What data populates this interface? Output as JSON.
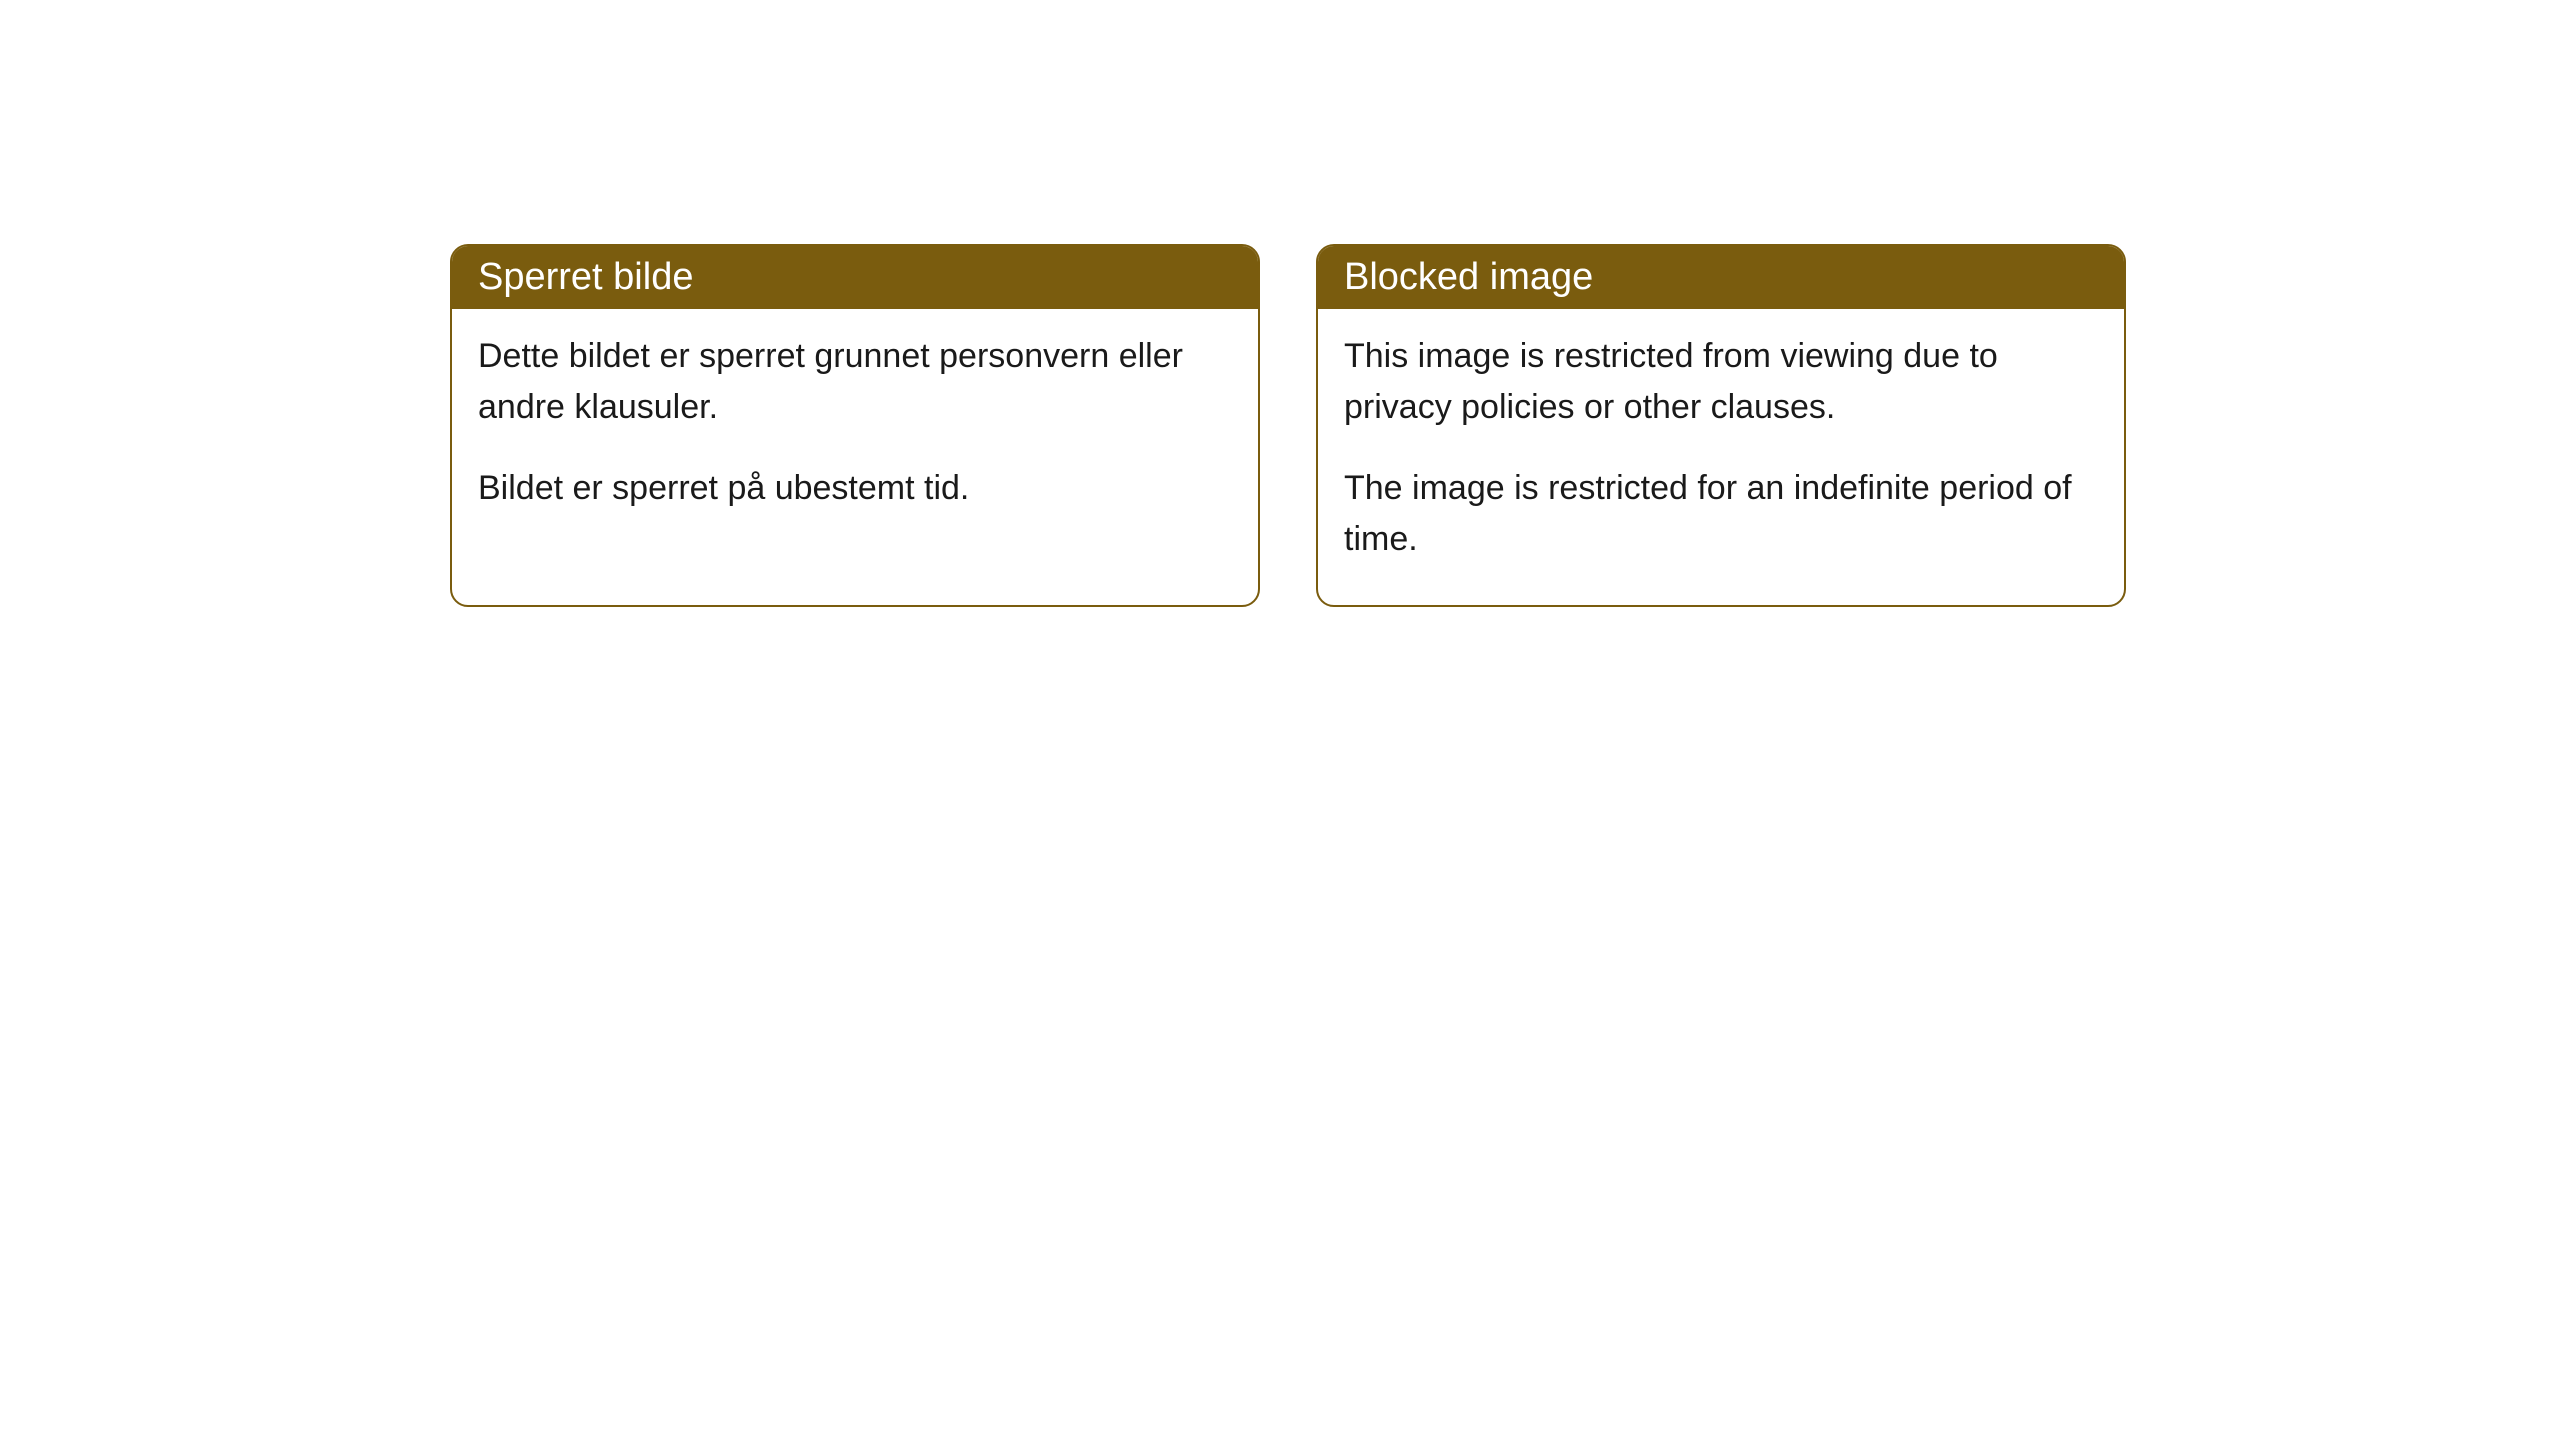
{
  "cards": [
    {
      "title": "Sperret bilde",
      "paragraph1": "Dette bildet er sperret grunnet personvern eller andre klausuler.",
      "paragraph2": "Bildet er sperret på ubestemt tid."
    },
    {
      "title": "Blocked image",
      "paragraph1": "This image is restricted from viewing due to privacy policies or other clauses.",
      "paragraph2": "The image is restricted for an indefinite period of time."
    }
  ],
  "style": {
    "header_bg_color": "#7a5c0e",
    "header_text_color": "#ffffff",
    "border_color": "#7a5c0e",
    "body_text_color": "#1a1a1a",
    "background_color": "#ffffff",
    "border_radius": 18,
    "header_fontsize": 38,
    "body_fontsize": 34
  }
}
